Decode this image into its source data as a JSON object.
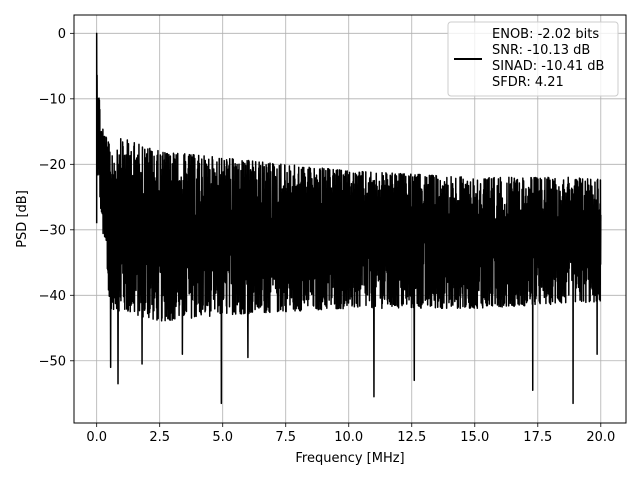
{
  "chart_data": {
    "type": "line",
    "title": "",
    "xlabel": "Frequency [MHz]",
    "ylabel": "PSD [dB]",
    "xlim": [
      -0.9,
      21.0
    ],
    "ylim": [
      -59.5,
      2.8
    ],
    "xticks": [
      0.0,
      2.5,
      5.0,
      7.5,
      10.0,
      12.5,
      15.0,
      17.5,
      20.0
    ],
    "xtick_labels": [
      "0.0",
      "2.5",
      "5.0",
      "7.5",
      "10.0",
      "12.5",
      "15.0",
      "17.5",
      "20.0"
    ],
    "yticks": [
      0,
      -10,
      -20,
      -30,
      -40,
      -50
    ],
    "ytick_labels": [
      "0",
      "−10",
      "−20",
      "−30",
      "−40",
      "−50"
    ],
    "grid": true,
    "legend_placement": "top-right",
    "legend": [
      "ENOB: -2.02 bits",
      "SNR: -10.13 dB",
      "SINAD: -10.41 dB",
      "SFDR: 4.21"
    ],
    "series": [
      {
        "color": "#000000",
        "x_range": [
          0,
          20
        ],
        "peak": {
          "x": 0.0,
          "y": 0.0
        },
        "upper_envelope": [
          [
            0.05,
            -5
          ],
          [
            0.15,
            -13
          ],
          [
            0.5,
            -17
          ],
          [
            1.0,
            -16
          ],
          [
            2.5,
            -18
          ],
          [
            5.0,
            -19
          ],
          [
            10.0,
            -21
          ],
          [
            15.0,
            -22
          ],
          [
            20.0,
            -22
          ]
        ],
        "lower_envelope": [
          [
            0.05,
            -22
          ],
          [
            0.5,
            -42
          ],
          [
            2.5,
            -44
          ],
          [
            5.0,
            -43
          ],
          [
            10.0,
            -42
          ],
          [
            15.0,
            -42
          ],
          [
            20.0,
            -41
          ]
        ],
        "notable_dips": [
          [
            0.55,
            -51
          ],
          [
            0.85,
            -53.5
          ],
          [
            1.8,
            -50.5
          ],
          [
            3.4,
            -49
          ],
          [
            4.95,
            -56.5
          ],
          [
            6.0,
            -49.5
          ],
          [
            11.0,
            -55.5
          ],
          [
            12.6,
            -53
          ],
          [
            17.3,
            -54.5
          ],
          [
            18.9,
            -56.5
          ],
          [
            19.85,
            -49
          ]
        ]
      }
    ]
  }
}
